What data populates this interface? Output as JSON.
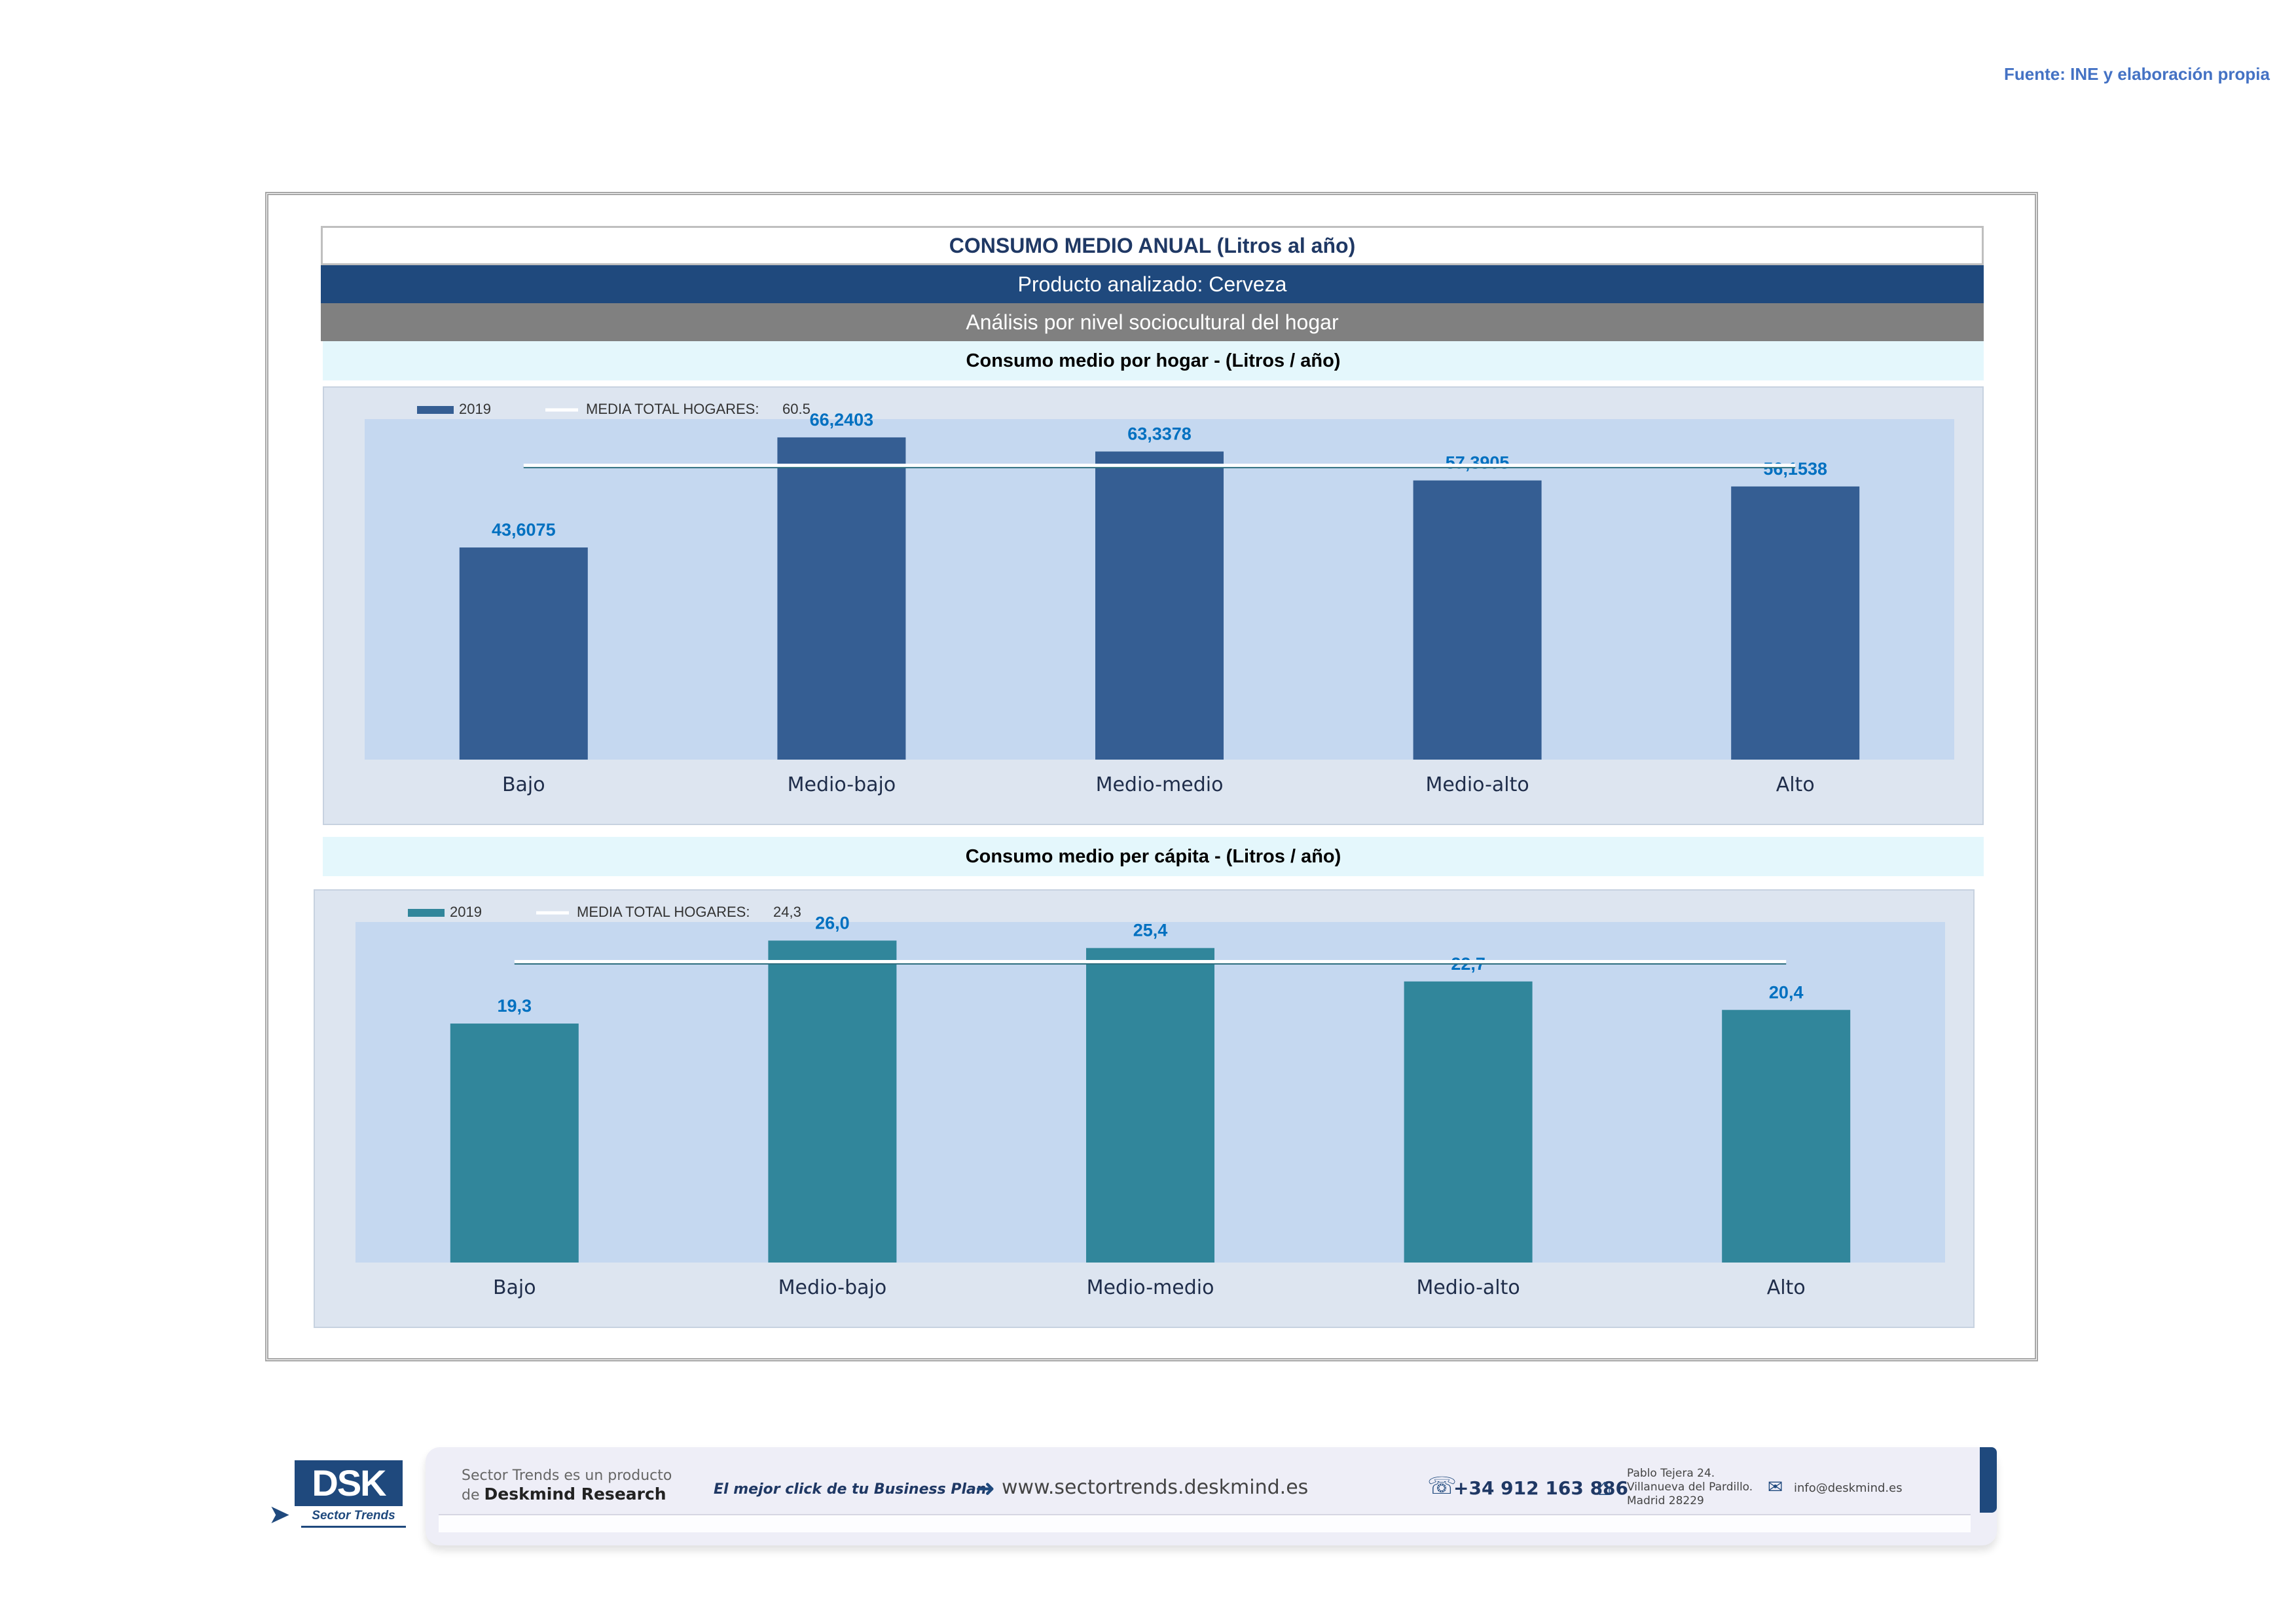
{
  "source": "Fuente: INE y elaboración propia",
  "header": {
    "title": "CONSUMO MEDIO ANUAL (Litros al año)",
    "product": "Producto analizado: Cerveza",
    "analysis": "Análisis por nivel sociocultural del hogar"
  },
  "chart_data": [
    {
      "type": "bar",
      "title": "Consumo medio por hogar -  (Litros / año)",
      "categories": [
        "Bajo",
        "Medio-bajo",
        "Medio-medio",
        "Medio-alto",
        "Alto"
      ],
      "series": [
        {
          "name": "2019",
          "values": [
            43.6075,
            66.2403,
            63.3378,
            57.3905,
            56.1538
          ],
          "labels": [
            "43,6075",
            "66,2403",
            "63,3378",
            "57,3905",
            "56,1538"
          ],
          "color": "#355e93"
        }
      ],
      "reference_line": {
        "name": "MEDIA TOTAL  HOGARES:",
        "label": "60.5",
        "value": 60.5
      },
      "ylim": [
        0,
        70
      ],
      "legend": "top-left",
      "grid": false,
      "label_color": "#0070c0"
    },
    {
      "type": "bar",
      "title": "Consumo medio per cápita -  (Litros / año)",
      "categories": [
        "Bajo",
        "Medio-bajo",
        "Medio-medio",
        "Medio-alto",
        "Alto"
      ],
      "series": [
        {
          "name": "2019",
          "values": [
            19.3,
            26.0,
            25.4,
            22.7,
            20.4
          ],
          "labels": [
            "19,3",
            "26,0",
            "25,4",
            "22,7",
            "20,4"
          ],
          "color": "#31869b"
        }
      ],
      "reference_line": {
        "name": "MEDIA TOTAL  HOGARES:",
        "label": "24,3",
        "value": 24.3
      },
      "ylim": [
        0,
        27.5
      ],
      "legend": "top-left",
      "grid": false,
      "label_color": "#0070c0"
    }
  ],
  "footer": {
    "logo_text": "DSK",
    "logo_sub": "Sector Trends",
    "tagline_1": "Sector Trends es un producto",
    "tagline_2": "de ",
    "brand": "Deskmind Research",
    "slogan": "El mejor click de tu Business Plan",
    "website": "www.sectortrends.deskmind.es",
    "phone": "+34 912 163 886",
    "address_1": "Pablo Tejera 24.",
    "address_2": "Villanueva del Pardillo.",
    "address_3": "Madrid 28229",
    "email": "info@deskmind.es",
    "icons": [
      "arrow-right-icon",
      "phone-icon",
      "home-icon",
      "mail-icon"
    ]
  }
}
